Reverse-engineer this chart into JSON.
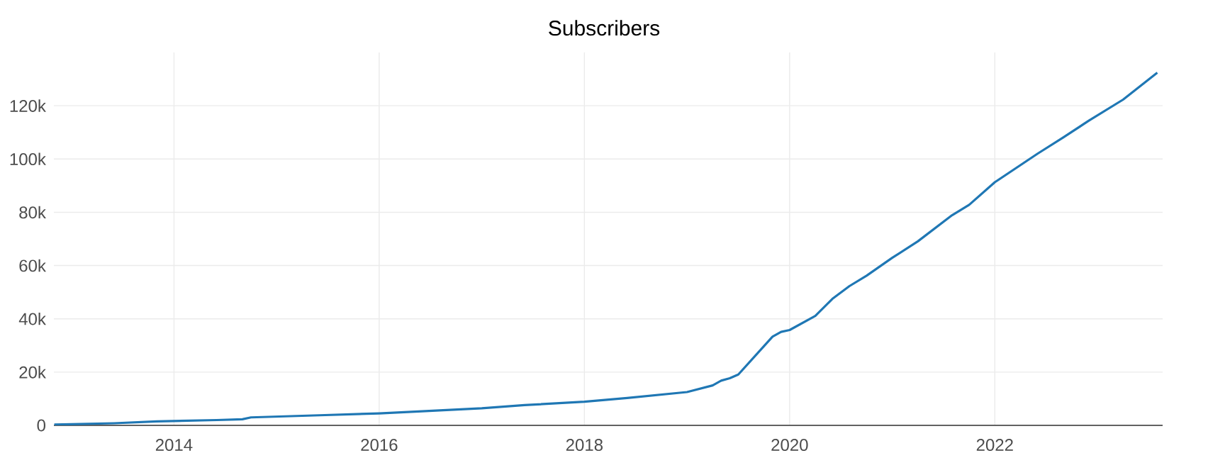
{
  "chart_data": {
    "type": "line",
    "title": "Subscribers",
    "x": [
      "2012-11",
      "2013-06",
      "2013-11",
      "2014-06",
      "2014-09",
      "2014-10",
      "2015-06",
      "2016-01",
      "2016-06",
      "2017-01",
      "2017-06",
      "2018-01",
      "2018-06",
      "2019-01",
      "2019-04",
      "2019-05",
      "2019-06",
      "2019-07",
      "2019-11",
      "2019-12",
      "2020-01",
      "2020-04",
      "2020-06",
      "2020-08",
      "2020-10",
      "2021-01",
      "2021-04",
      "2021-08",
      "2021-10",
      "2022-01",
      "2022-06",
      "2022-09",
      "2022-12",
      "2023-04",
      "2023-08"
    ],
    "series": [
      {
        "color": "#1f77b4",
        "values": [
          300,
          800,
          1500,
          2000,
          2300,
          3000,
          3800,
          4500,
          5300,
          6400,
          7600,
          8900,
          10300,
          12500,
          15000,
          16800,
          17700,
          19100,
          33300,
          35100,
          35800,
          41100,
          47500,
          52300,
          56200,
          62900,
          69100,
          78900,
          82800,
          91300,
          102000,
          108100,
          114400,
          122300,
          132400
        ]
      }
    ],
    "xlim": [
      "2012-10-30",
      "2023-08-20"
    ],
    "xticks": [
      {
        "value": "2014-01-01",
        "label": "2014"
      },
      {
        "value": "2016-01-01",
        "label": "2016"
      },
      {
        "value": "2018-01-01",
        "label": "2018"
      },
      {
        "value": "2020-01-01",
        "label": "2020"
      },
      {
        "value": "2022-01-01",
        "label": "2022"
      }
    ],
    "ylim": [
      0,
      140000
    ],
    "yticks": [
      0,
      {
        "value": 20000,
        "label": "20k"
      },
      {
        "value": 40000,
        "label": "40k"
      },
      {
        "value": 60000,
        "label": "60k"
      },
      {
        "value": 80000,
        "label": "80k"
      },
      {
        "value": 100000,
        "label": "100k"
      },
      {
        "value": 120000,
        "label": "120k"
      }
    ],
    "grid": true,
    "legend": false,
    "marker": "none",
    "line_style": "solid"
  }
}
